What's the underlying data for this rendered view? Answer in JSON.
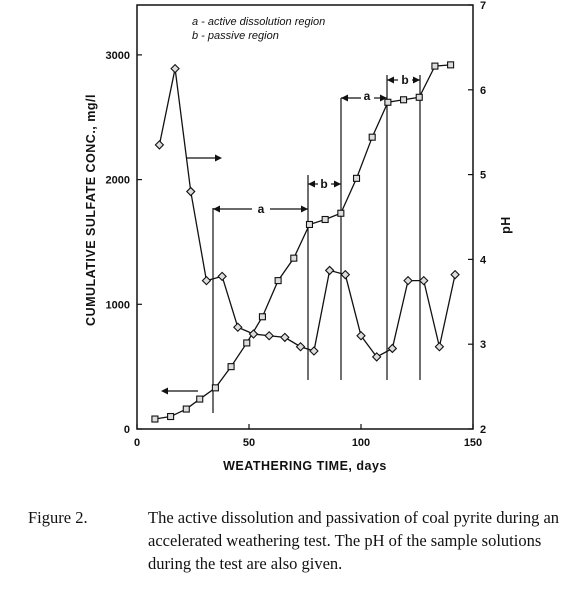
{
  "chart_data": {
    "type": "line",
    "xlabel": "WEATHERING TIME, days",
    "ylabel_left": "CUMULATIVE SULFATE CONC., mg/l",
    "ylabel_right": "pH",
    "xlim": [
      0,
      150
    ],
    "ylim_left": [
      0,
      3400
    ],
    "ylim_right": [
      2,
      7
    ],
    "xticks": [
      "0",
      "50",
      "100",
      "150"
    ],
    "yticks_left": [
      "0",
      "1000",
      "2000",
      "3000"
    ],
    "yticks_right": [
      "2",
      "3",
      "4",
      "5",
      "6",
      "7"
    ],
    "legend": [
      "a - active dissolution region",
      "b - passive region"
    ],
    "annotations": [
      "a",
      "b",
      "a",
      "b"
    ],
    "series": [
      {
        "axis": "left",
        "marker": "square",
        "x": [
          8,
          15,
          22,
          28,
          35,
          42,
          49,
          56,
          63,
          70,
          77,
          84,
          91,
          98,
          105,
          112,
          119,
          126,
          133,
          140
        ],
        "values": [
          80,
          100,
          160,
          240,
          330,
          500,
          690,
          900,
          1190,
          1370,
          1640,
          1680,
          1730,
          2010,
          2340,
          2620,
          2640,
          2660,
          2910,
          2920
        ]
      },
      {
        "axis": "right",
        "marker": "diamond",
        "x": [
          10,
          17,
          24,
          31,
          38,
          45,
          52,
          59,
          66,
          73,
          79,
          86,
          93,
          100,
          107,
          114,
          121,
          128,
          135,
          142
        ],
        "values": [
          5.35,
          6.25,
          4.8,
          3.75,
          3.8,
          3.2,
          3.12,
          3.1,
          3.08,
          2.97,
          2.92,
          3.87,
          3.82,
          3.1,
          2.85,
          2.95,
          3.75,
          3.75,
          2.97,
          3.82
        ]
      }
    ]
  },
  "caption": {
    "label": "Figure 2.",
    "text": "The active dissolution and passivation of coal pyrite during an accelerated weathering test. The pH of the sample solutions during the test are also given."
  }
}
